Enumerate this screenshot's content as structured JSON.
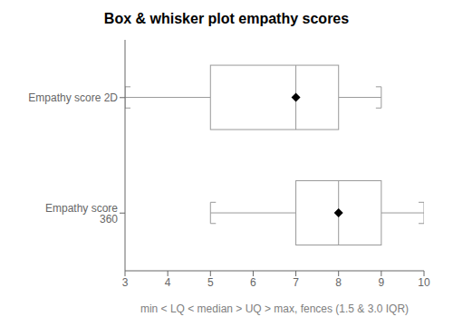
{
  "chart_data": {
    "type": "box",
    "title": "Box & whisker plot empathy scores",
    "xlabel": "min < LQ < median > UQ > max, fences (1.5 & 3.0 IQR)",
    "orientation": "horizontal",
    "categories": [
      "Empathy score 2D",
      "Empathy score 360"
    ],
    "min": [
      3,
      5
    ],
    "lq": [
      5,
      7
    ],
    "median": [
      7,
      8
    ],
    "uq": [
      8,
      9
    ],
    "max": [
      9,
      10
    ],
    "mean": [
      7.0,
      8.0
    ],
    "marker": "diamond",
    "color": "#999999",
    "xlim": [
      3,
      10
    ],
    "xticks": [
      3,
      4,
      5,
      6,
      7,
      8,
      9,
      10
    ]
  }
}
